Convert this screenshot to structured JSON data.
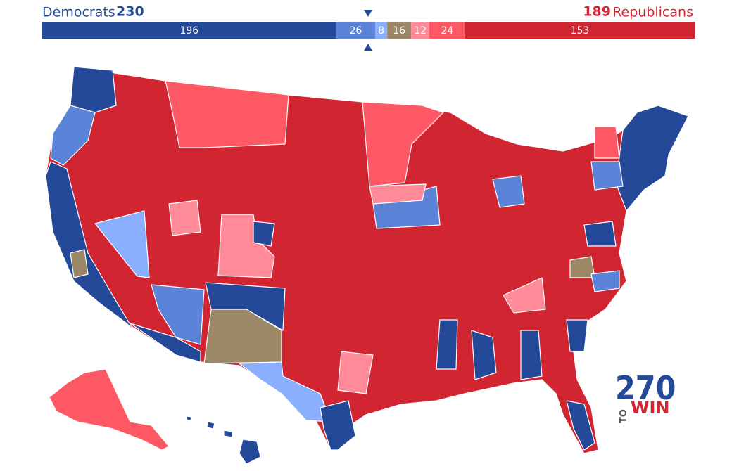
{
  "header": {
    "dem_label": "Democrats",
    "dem_total": 230,
    "rep_total": 189,
    "rep_label": "Republicans"
  },
  "bar": {
    "segments": [
      {
        "value": 196,
        "color": "#244999"
      },
      {
        "value": 26,
        "color": "#5b84d8"
      },
      {
        "value": 8,
        "color": "#8aafff"
      },
      {
        "value": 16,
        "color": "#9c8866"
      },
      {
        "value": 12,
        "color": "#ff8b98"
      },
      {
        "value": 24,
        "color": "#ff5865"
      },
      {
        "value": 153,
        "color": "#d22532"
      }
    ]
  },
  "logo": {
    "number": "270",
    "to": "TO",
    "win": "WIN"
  }
}
